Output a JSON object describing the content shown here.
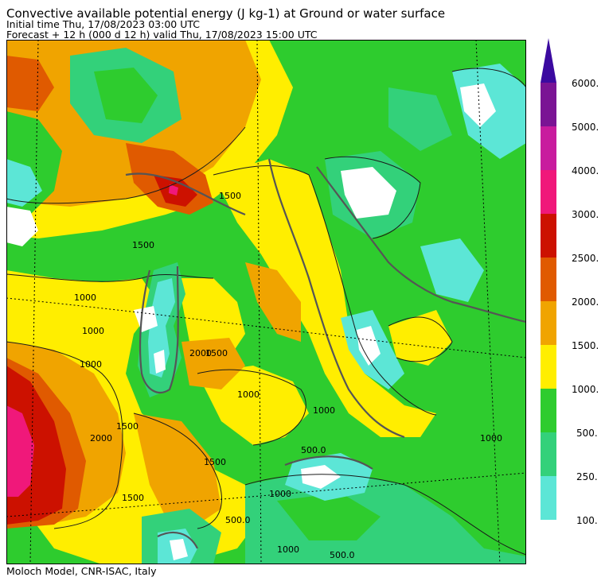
{
  "header": {
    "title": "Convective available potential energy (J kg-1) at Ground or water surface",
    "initial_time": "Initial time  Thu, 17/08/2023  03:00 UTC",
    "forecast": "Forecast  +  12 h  (000 d 12 h)  valid Thu, 17/08/2023  15:00 UTC"
  },
  "footer": {
    "credit": "Moloch Model, CNR-ISAC, Italy"
  },
  "legend": {
    "levels": [
      {
        "label": "100.",
        "color": "#5ce6d6"
      },
      {
        "label": "250.",
        "color": "#33d17a"
      },
      {
        "label": "500.",
        "color": "#2ecc2e"
      },
      {
        "label": "1000.",
        "color": "#ffee00"
      },
      {
        "label": "1500.",
        "color": "#f0a400"
      },
      {
        "label": "2000.",
        "color": "#e05a00"
      },
      {
        "label": "2500.",
        "color": "#cc1100"
      },
      {
        "label": "3000.",
        "color": "#f0187a"
      },
      {
        "label": "4000.",
        "color": "#c81c9e"
      },
      {
        "label": "5000.",
        "color": "#7a1494"
      },
      {
        "label": "6000.",
        "color": "#3b0aa0"
      }
    ]
  },
  "map": {
    "contour_labels": [
      "1500",
      "1500",
      "1000",
      "1000",
      "1000",
      "1500",
      "2000",
      "1500",
      "1000",
      "1500",
      "2000",
      "1500",
      "1000",
      "1000",
      "500.0",
      "500.0",
      "1000",
      "1000",
      "500.0"
    ]
  }
}
